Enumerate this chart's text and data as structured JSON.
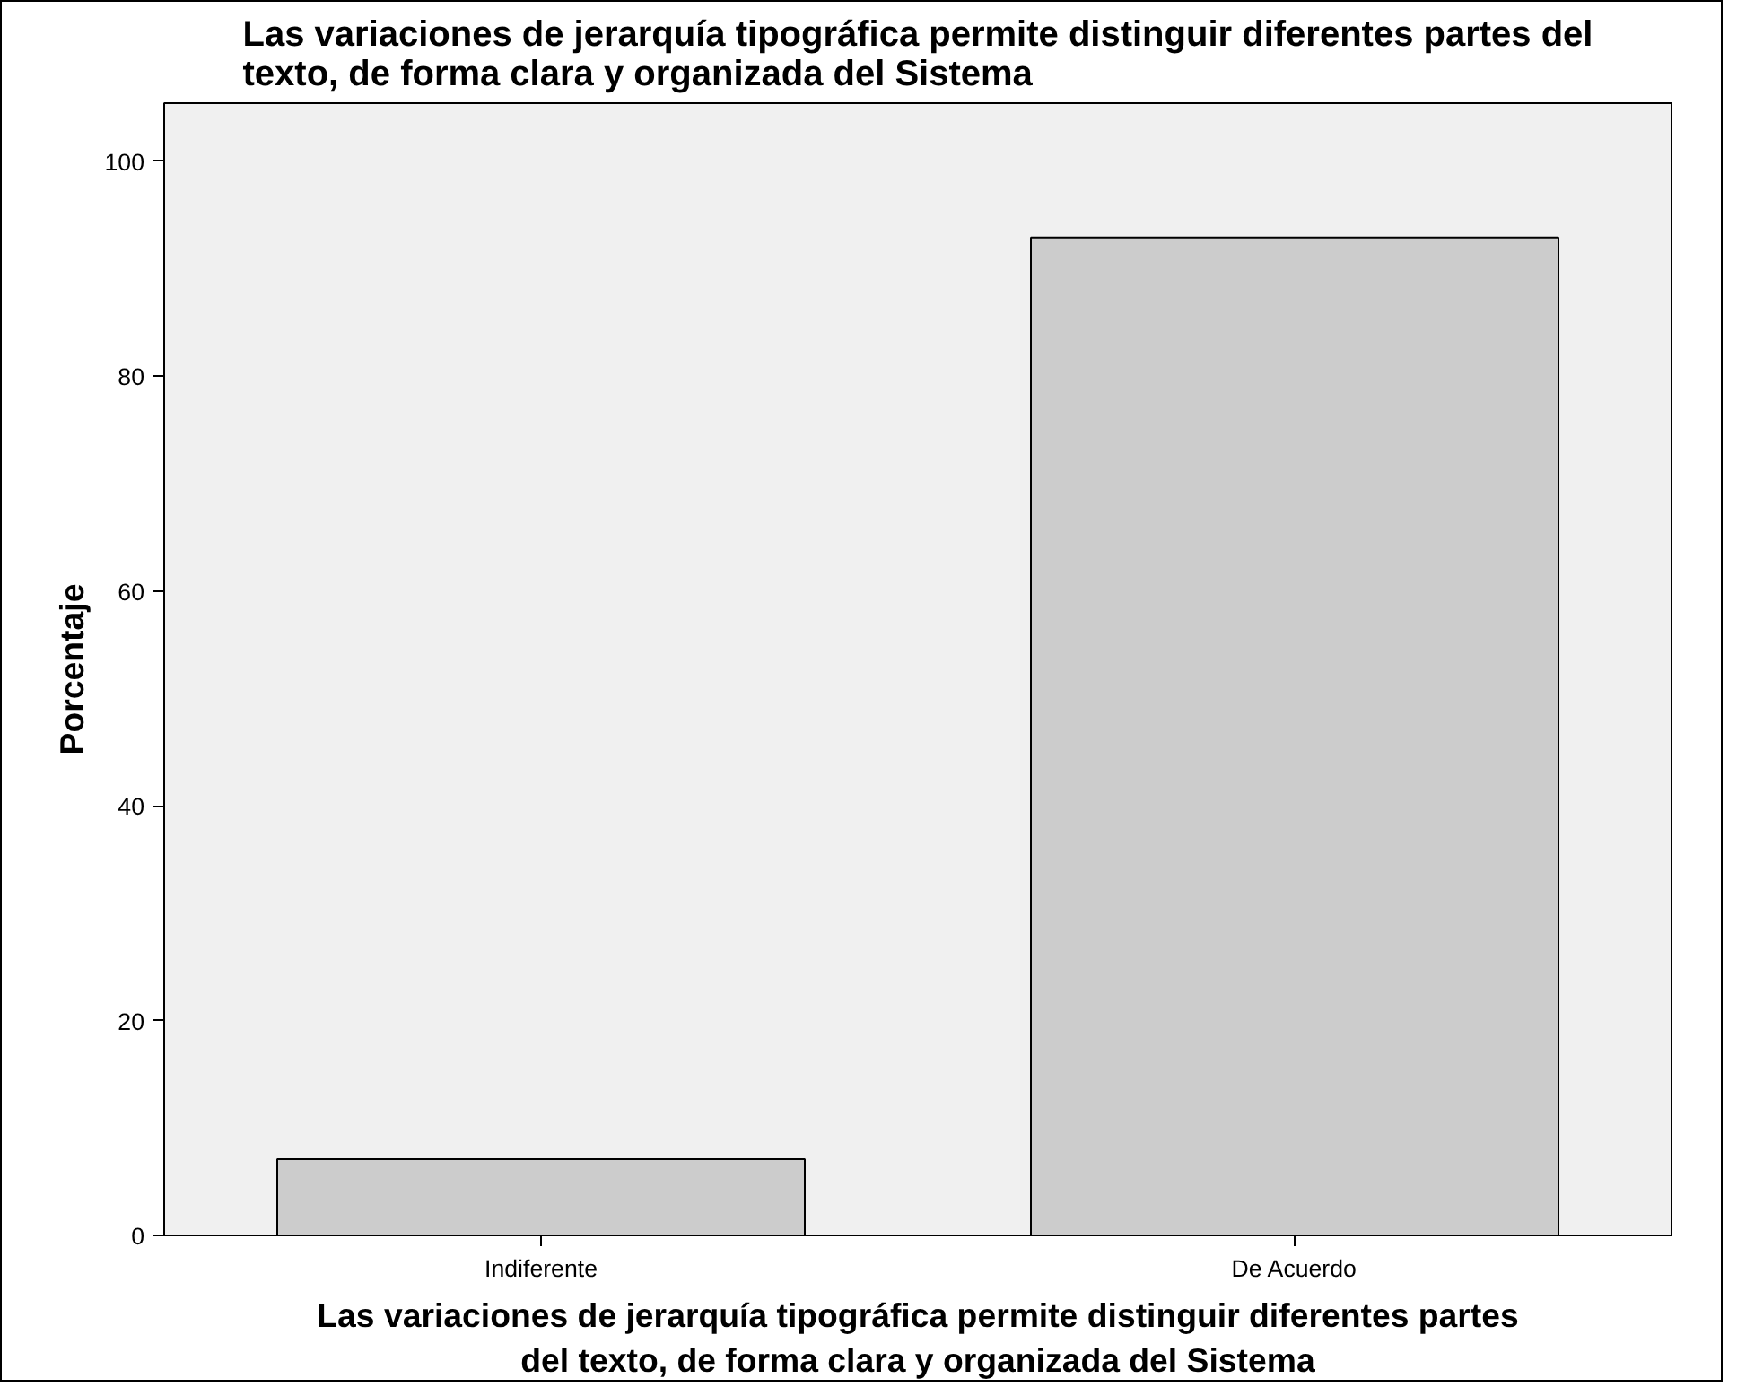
{
  "chart_data": {
    "type": "bar",
    "title": "Las variaciones de jerarquía tipográfica permite distinguir diferentes partes del\ntexto, de forma clara y organizada del Sistema",
    "xlabel": "Las variaciones de jerarquía tipográfica permite distinguir diferentes partes\ndel texto, de forma clara y organizada del Sistema",
    "ylabel": "Porcentaje",
    "categories": [
      "Indiferente",
      "De Acuerdo"
    ],
    "values": [
      7.1,
      92.9
    ],
    "color": "#cccccc",
    "ylim": [
      0,
      105.4
    ],
    "yticks": [
      0,
      20,
      40,
      60,
      80,
      100
    ],
    "grid": false
  }
}
